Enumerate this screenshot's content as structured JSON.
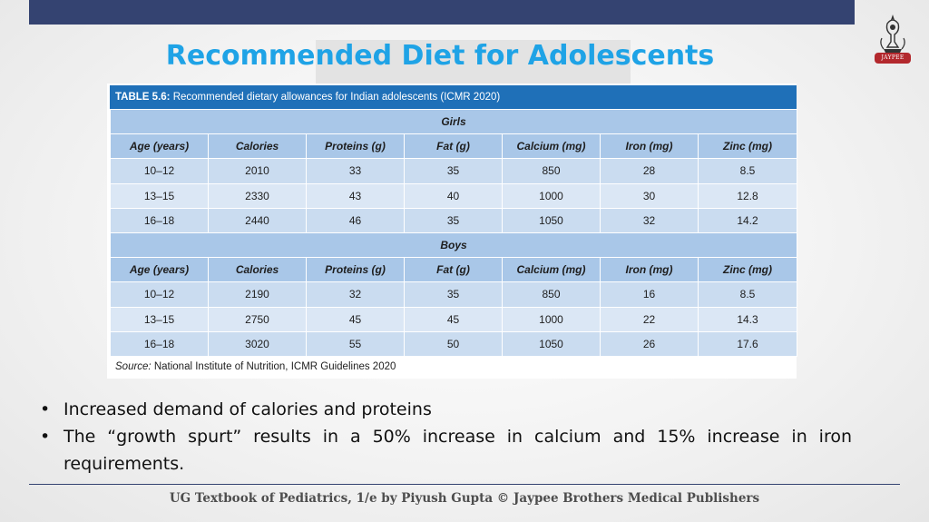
{
  "slide": {
    "title": "Recommended Diet for Adolescents",
    "logo_text": "JAYPEE",
    "footer": "UG Textbook of Pediatrics, 1/e by Piyush Gupta © Jaypee Brothers Medical Publishers"
  },
  "table": {
    "caption_label": "TABLE 5.6:",
    "caption_text": " Recommended dietary allowances for Indian adolescents (ICMR 2020)",
    "columns": [
      "Age (years)",
      "Calories",
      "Proteins (g)",
      "Fat (g)",
      "Calcium (mg)",
      "Iron (mg)",
      "Zinc (mg)"
    ],
    "groups": [
      {
        "name": "Girls",
        "rows": [
          [
            "10–12",
            "2010",
            "33",
            "35",
            "850",
            "28",
            "8.5"
          ],
          [
            "13–15",
            "2330",
            "43",
            "40",
            "1000",
            "30",
            "12.8"
          ],
          [
            "16–18",
            "2440",
            "46",
            "35",
            "1050",
            "32",
            "14.2"
          ]
        ]
      },
      {
        "name": "Boys",
        "rows": [
          [
            "10–12",
            "2190",
            "32",
            "35",
            "850",
            "16",
            "8.5"
          ],
          [
            "13–15",
            "2750",
            "45",
            "45",
            "1000",
            "22",
            "14.3"
          ],
          [
            "16–18",
            "3020",
            "55",
            "50",
            "1050",
            "26",
            "17.6"
          ]
        ]
      }
    ],
    "source_label": "Source:",
    "source_text": " National Institute of Nutrition, ICMR Guidelines 2020"
  },
  "bullets": [
    "Increased demand of calories and proteins",
    "The “growth spurt” results in a 50% increase in calcium and 15% increase in iron requirements."
  ],
  "colors": {
    "header_bar": "#344371",
    "title": "#1fa3e6",
    "table_caption": "#1f70b8",
    "table_header": "#a9c7e8",
    "table_row": "#cadcf0"
  }
}
